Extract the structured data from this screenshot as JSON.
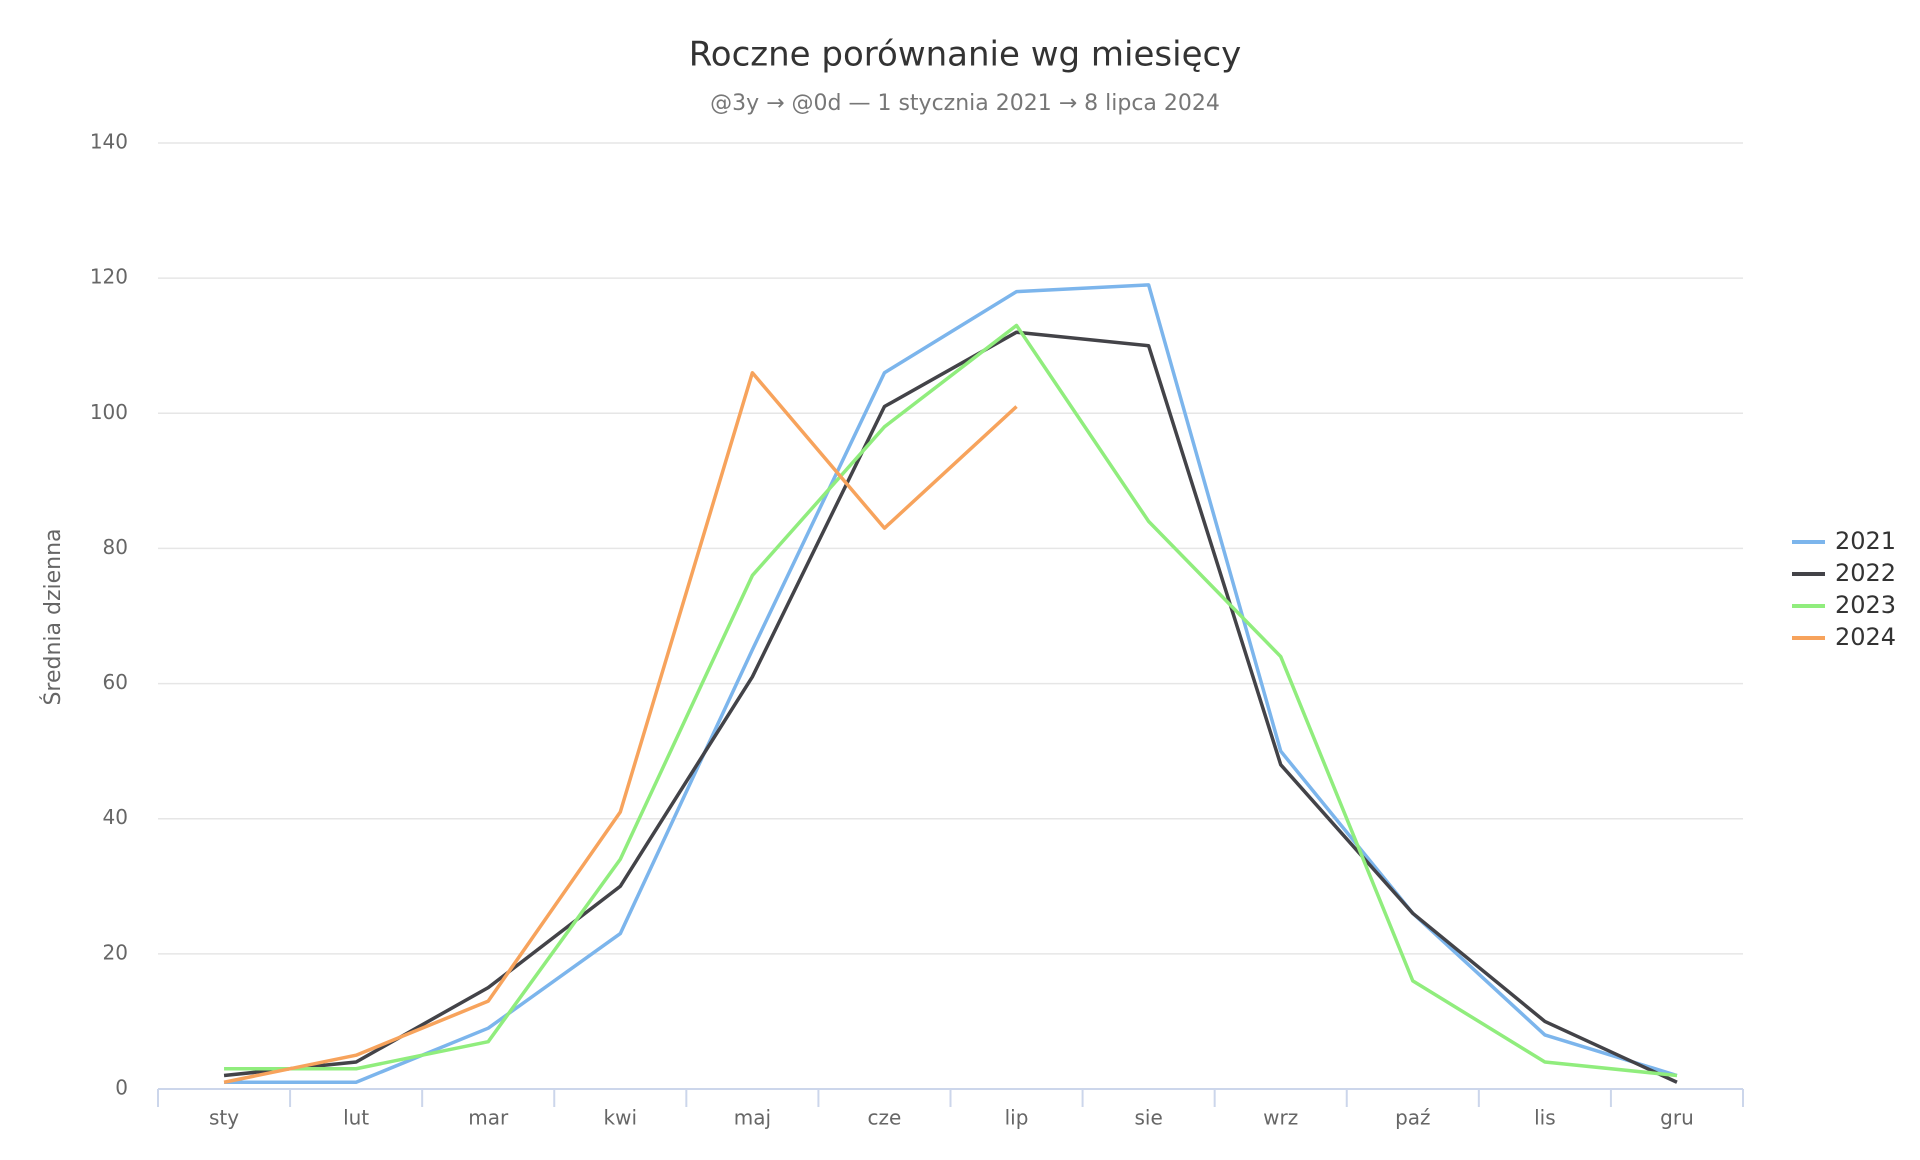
{
  "chart_data": {
    "type": "line",
    "title": "Roczne porównanie wg miesięcy",
    "subtitle": "@3y → @0d  —  1 stycznia 2021 → 8 lipca 2024",
    "y_label": "Średnia dzienna",
    "categories": [
      "sty",
      "lut",
      "mar",
      "kwi",
      "maj",
      "cze",
      "lip",
      "sie",
      "wrz",
      "paź",
      "lis",
      "gru"
    ],
    "series": [
      {
        "name": "2021",
        "color": "#7cb5ec",
        "values": [
          1,
          1,
          9,
          23,
          65,
          106,
          118,
          119,
          50,
          26,
          8,
          2
        ]
      },
      {
        "name": "2022",
        "color": "#434348",
        "values": [
          2,
          4,
          15,
          30,
          61,
          101,
          112,
          110,
          48,
          26,
          10,
          1
        ]
      },
      {
        "name": "2023",
        "color": "#90ed7d",
        "values": [
          3,
          3,
          7,
          34,
          76,
          98,
          113,
          84,
          64,
          16,
          4,
          2
        ]
      },
      {
        "name": "2024",
        "color": "#f7a35c",
        "values": [
          1,
          5,
          13,
          41,
          106,
          83,
          101,
          null,
          null,
          null,
          null,
          null
        ]
      }
    ],
    "ylim": [
      0,
      140
    ],
    "yticks": [
      0,
      20,
      40,
      60,
      80,
      100,
      120,
      140
    ],
    "grid": true,
    "legend": "right"
  }
}
